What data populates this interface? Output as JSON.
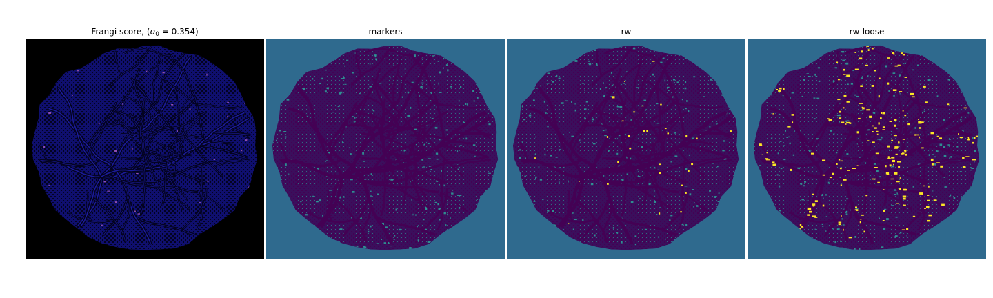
{
  "figure": {
    "panels": [
      {
        "id": "frangi",
        "title_prefix": "Frangi score, (",
        "title_symbol": "σ",
        "title_subscript": "0",
        "title_suffix": " = 0.354)",
        "background": "#000000",
        "disc_color": "#0f0f6e",
        "vessel_color": "#030320",
        "accent_color": "#c46ad0"
      },
      {
        "id": "markers",
        "title": "markers",
        "background": "#2f6a8e",
        "disc_color": "#3b0f5c",
        "vessel_color": "#440154",
        "accent_color": "#2ea39a"
      },
      {
        "id": "rw",
        "title": "rw",
        "background": "#2f6a8e",
        "disc_color": "#3b0f5c",
        "vessel_color": "#440154",
        "accent_color": "#2ea39a",
        "highlight_color": "#fde725"
      },
      {
        "id": "rw-loose",
        "title": "rw-loose",
        "background": "#2f6a8e",
        "disc_color": "#3b0f5c",
        "vessel_color": "#440154",
        "accent_color": "#2ea39a",
        "highlight_color": "#fde725"
      }
    ]
  }
}
